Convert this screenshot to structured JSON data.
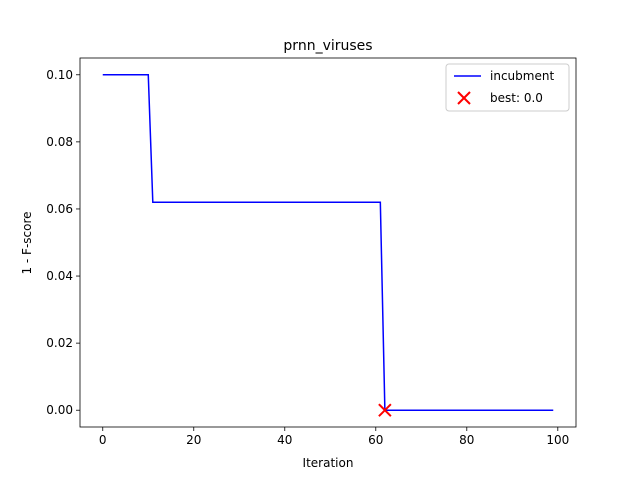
{
  "chart_data": {
    "type": "line",
    "title": "prnn_viruses",
    "xlabel": "Iteration",
    "ylabel": "1 - F-score",
    "xlim": [
      -5,
      104
    ],
    "ylim": [
      -0.005,
      0.105
    ],
    "xticks": [
      0,
      20,
      40,
      60,
      80,
      100
    ],
    "xtick_labels": [
      "0",
      "20",
      "40",
      "60",
      "80",
      "100"
    ],
    "yticks": [
      0.0,
      0.02,
      0.04,
      0.06,
      0.08,
      0.1
    ],
    "ytick_labels": [
      "0.00",
      "0.02",
      "0.04",
      "0.06",
      "0.08",
      "0.10"
    ],
    "grid": false,
    "legend_position": "top-right",
    "series": [
      {
        "name": "incubment",
        "style": "line",
        "color": "#0000ff",
        "x": [
          0,
          10,
          11,
          61,
          62,
          99
        ],
        "y": [
          0.1,
          0.1,
          0.062,
          0.062,
          0.0,
          0.0
        ]
      },
      {
        "name": "best: 0.0",
        "style": "marker-x",
        "color": "#ff0000",
        "x": [
          62
        ],
        "y": [
          0.0
        ]
      }
    ]
  }
}
